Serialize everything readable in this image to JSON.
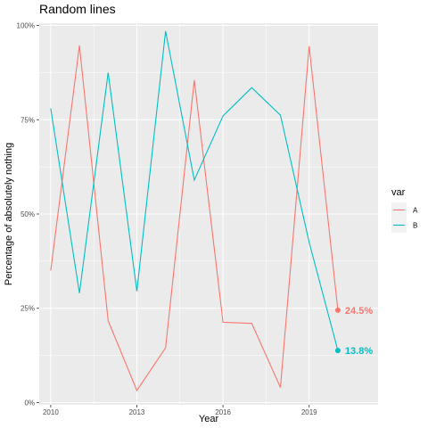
{
  "chart_data": {
    "type": "line",
    "title": "Random lines",
    "xlabel": "Year",
    "ylabel": "Percentage of absolutely nothing",
    "x": [
      2010,
      2011,
      2012,
      2013,
      2014,
      2015,
      2016,
      2017,
      2018,
      2019,
      2020
    ],
    "xlim": [
      2009.6,
      2021.4
    ],
    "ylim": [
      -0.006,
      1.006
    ],
    "xticks": [
      2010,
      2013,
      2016,
      2019
    ],
    "xtick_labels": [
      "2010",
      "2013",
      "2016",
      "2019"
    ],
    "yticks": [
      0,
      0.25,
      0.5,
      0.75,
      1.0
    ],
    "ytick_labels": [
      "0%",
      "25%",
      "50%",
      "75%",
      "100%"
    ],
    "grid": true,
    "legend": {
      "title": "var",
      "position": "right",
      "entries": [
        "A",
        "B"
      ]
    },
    "series": [
      {
        "name": "A",
        "color": "#F8766D",
        "values": [
          0.35,
          0.947,
          0.217,
          0.032,
          0.145,
          0.855,
          0.213,
          0.21,
          0.04,
          0.945,
          0.245
        ],
        "end_label": "24.5%"
      },
      {
        "name": "B",
        "color": "#00BFC4",
        "values": [
          0.78,
          0.29,
          0.875,
          0.295,
          0.985,
          0.59,
          0.76,
          0.835,
          0.762,
          0.425,
          0.138
        ],
        "end_label": "13.8%"
      }
    ]
  }
}
